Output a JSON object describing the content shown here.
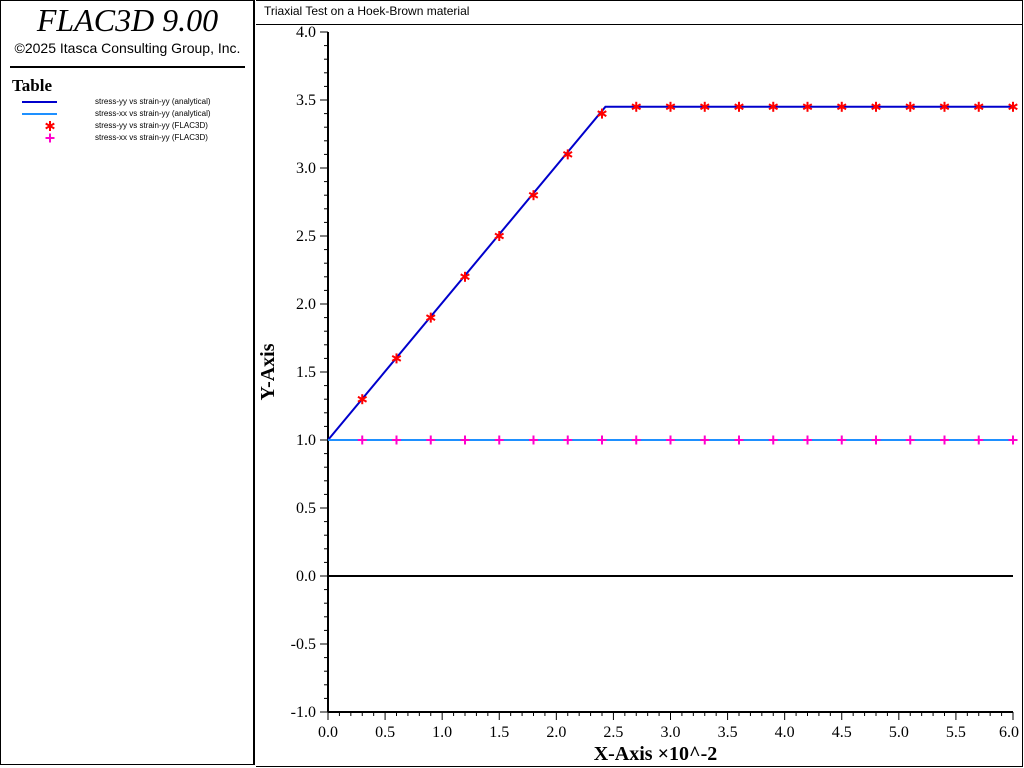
{
  "app": {
    "title": "FLAC3D 9.00",
    "copyright": "©2025 Itasca Consulting Group, Inc."
  },
  "legend": {
    "heading": "Table",
    "items": [
      {
        "label": "stress-yy vs strain-yy (analytical)",
        "style": "line",
        "color": "#0000cc"
      },
      {
        "label": "stress-xx vs strain-yy (analytical)",
        "style": "line",
        "color": "#1e90ff"
      },
      {
        "label": "stress-yy vs strain-yy (FLAC3D)",
        "style": "asterisk",
        "color": "#ff0000"
      },
      {
        "label": "stress-xx vs strain-yy (FLAC3D)",
        "style": "plus",
        "color": "#ff00cc"
      }
    ]
  },
  "chart_data": {
    "type": "line",
    "title": "Triaxial Test on a Hoek-Brown material",
    "xlabel": "X-Axis ×10^-2",
    "ylabel": "Y-Axis",
    "xlim": [
      0,
      6
    ],
    "ylim": [
      -1,
      4
    ],
    "x_ticks": [
      "0.0",
      "0.5",
      "1.0",
      "1.5",
      "2.0",
      "2.5",
      "3.0",
      "3.5",
      "4.0",
      "4.5",
      "5.0",
      "5.5",
      "6.0"
    ],
    "y_ticks": [
      "-1.0",
      "-0.5",
      "0.0",
      "0.5",
      "1.0",
      "1.5",
      "2.0",
      "2.5",
      "3.0",
      "3.5",
      "4.0"
    ],
    "grid": false,
    "series": [
      {
        "name": "stress-yy vs strain-yy (analytical)",
        "style": "line",
        "color": "#0000cc",
        "x": [
          0,
          2.43,
          6.0
        ],
        "y": [
          1.0,
          3.45,
          3.45
        ]
      },
      {
        "name": "stress-xx vs strain-yy (analytical)",
        "style": "line",
        "color": "#1e90ff",
        "x": [
          0,
          6.0
        ],
        "y": [
          1.0,
          1.0
        ]
      },
      {
        "name": "stress-yy vs strain-yy (FLAC3D)",
        "style": "asterisk",
        "color": "#ff0000",
        "x": [
          0.3,
          0.6,
          0.9,
          1.2,
          1.5,
          1.8,
          2.1,
          2.4,
          2.7,
          3.0,
          3.3,
          3.6,
          3.9,
          4.2,
          4.5,
          4.8,
          5.1,
          5.4,
          5.7,
          6.0
        ],
        "y": [
          1.3,
          1.6,
          1.9,
          2.2,
          2.5,
          2.8,
          3.1,
          3.4,
          3.45,
          3.45,
          3.45,
          3.45,
          3.45,
          3.45,
          3.45,
          3.45,
          3.45,
          3.45,
          3.45,
          3.45
        ]
      },
      {
        "name": "stress-xx vs strain-yy (FLAC3D)",
        "style": "plus",
        "color": "#ff00cc",
        "x": [
          0.3,
          0.6,
          0.9,
          1.2,
          1.5,
          1.8,
          2.1,
          2.4,
          2.7,
          3.0,
          3.3,
          3.6,
          3.9,
          4.2,
          4.5,
          4.8,
          5.1,
          5.4,
          5.7,
          6.0
        ],
        "y": [
          1.0,
          1.0,
          1.0,
          1.0,
          1.0,
          1.0,
          1.0,
          1.0,
          1.0,
          1.0,
          1.0,
          1.0,
          1.0,
          1.0,
          1.0,
          1.0,
          1.0,
          1.0,
          1.0,
          1.0
        ]
      }
    ],
    "reference_lines": [
      {
        "axis": "y",
        "value": 0.0,
        "color": "#000000"
      }
    ]
  }
}
